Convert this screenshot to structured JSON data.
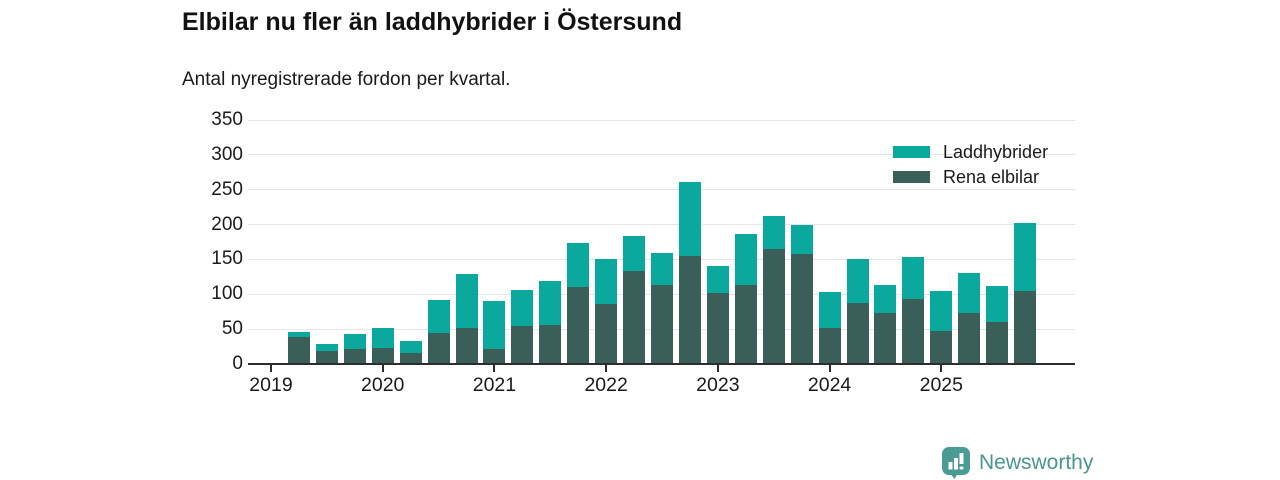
{
  "chart_data": {
    "type": "bar",
    "stacked": true,
    "title": "Elbilar nu fler än laddhybrider i Östersund",
    "subtitle": "Antal nyregistrerade fordon per kvartal.",
    "categories": [
      "2019 Q1",
      "2019 Q2",
      "2019 Q3",
      "2019 Q4",
      "2020 Q1",
      "2020 Q2",
      "2020 Q3",
      "2020 Q4",
      "2021 Q1",
      "2021 Q2",
      "2021 Q3",
      "2021 Q4",
      "2022 Q1",
      "2022 Q2",
      "2022 Q3",
      "2022 Q4",
      "2023 Q1",
      "2023 Q2",
      "2023 Q3",
      "2023 Q4",
      "2024 Q1",
      "2024 Q2",
      "2024 Q3",
      "2024 Q4",
      "2025 Q1",
      "2025 Q2",
      "2025 Q3",
      "2025 Q4"
    ],
    "series": [
      {
        "name": "Rena elbilar",
        "color": "#3a5f58",
        "values": [
          0,
          39,
          18,
          21,
          23,
          16,
          44,
          52,
          21,
          55,
          56,
          110,
          86,
          134,
          114,
          155,
          102,
          114,
          165,
          158,
          52,
          87,
          73,
          93,
          48,
          73,
          60,
          105
        ]
      },
      {
        "name": "Laddhybrider",
        "color": "#0ba89e",
        "values": [
          0,
          7,
          10,
          22,
          29,
          17,
          48,
          77,
          69,
          51,
          63,
          63,
          64,
          50,
          45,
          106,
          39,
          72,
          47,
          41,
          51,
          63,
          41,
          61,
          56,
          58,
          52,
          97
        ]
      }
    ],
    "xlabel": "",
    "ylabel": "",
    "ylim": [
      0,
      350
    ],
    "yticks": [
      0,
      50,
      100,
      150,
      200,
      250,
      300,
      350
    ],
    "year_labels": [
      "2019",
      "2020",
      "2021",
      "2022",
      "2023",
      "2024",
      "2025"
    ],
    "grid": "horizontal",
    "legend_position": "top-right"
  },
  "legend": [
    {
      "label": "Laddhybrider",
      "color": "#0ba89e"
    },
    {
      "label": "Rena elbilar",
      "color": "#3a5f58"
    }
  ],
  "colors": {
    "laddhybrider": "#0ba89e",
    "rena_elbilar": "#3a5f58",
    "axis": "#2d2d2d",
    "grid": "#e5e5e5",
    "text": "#1a1a1a",
    "logo": "#4a968f"
  },
  "logo": {
    "text": "Newsworthy"
  }
}
